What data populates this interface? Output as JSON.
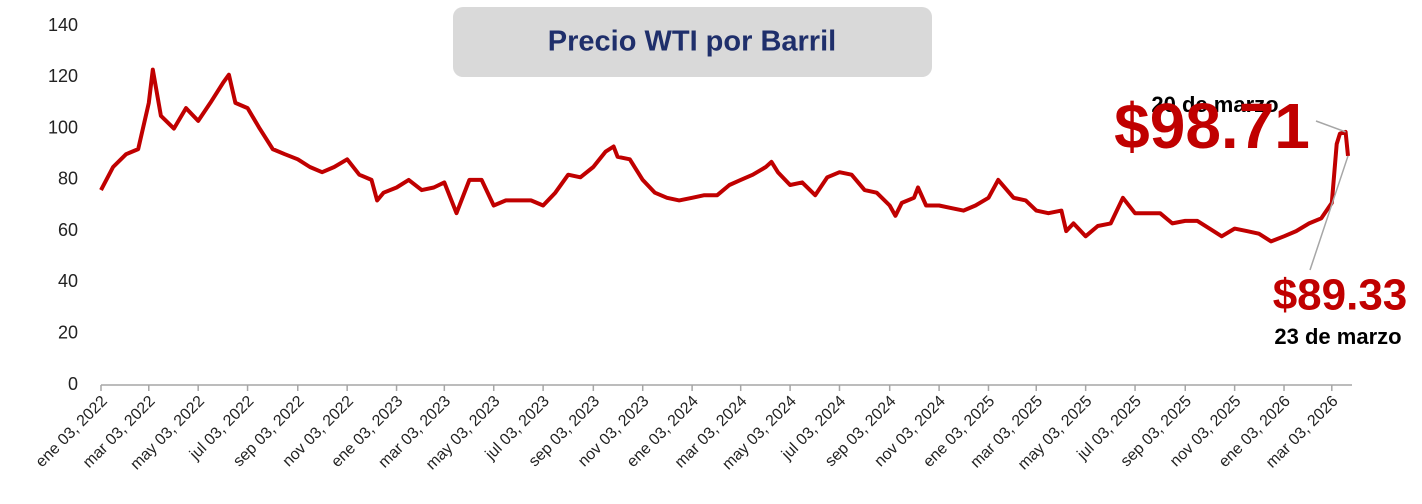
{
  "chart_data": {
    "type": "line",
    "title": "Precio WTI por Barril",
    "x": [
      "2022-01-03",
      "2022-01-18",
      "2022-02-03",
      "2022-02-18",
      "2022-03-03",
      "2022-03-08",
      "2022-03-18",
      "2022-04-03",
      "2022-04-18",
      "2022-05-03",
      "2022-05-18",
      "2022-06-03",
      "2022-06-10",
      "2022-06-18",
      "2022-07-03",
      "2022-07-18",
      "2022-08-03",
      "2022-08-18",
      "2022-09-03",
      "2022-09-18",
      "2022-10-03",
      "2022-10-18",
      "2022-11-03",
      "2022-11-18",
      "2022-12-03",
      "2022-12-10",
      "2022-12-18",
      "2023-01-03",
      "2023-01-18",
      "2023-02-03",
      "2023-02-18",
      "2023-03-03",
      "2023-03-18",
      "2023-04-03",
      "2023-04-18",
      "2023-05-03",
      "2023-05-18",
      "2023-06-03",
      "2023-06-18",
      "2023-07-03",
      "2023-07-18",
      "2023-08-03",
      "2023-08-18",
      "2023-09-03",
      "2023-09-18",
      "2023-09-28",
      "2023-10-03",
      "2023-10-18",
      "2023-11-03",
      "2023-11-18",
      "2023-12-03",
      "2023-12-18",
      "2024-01-03",
      "2024-01-18",
      "2024-02-03",
      "2024-02-18",
      "2024-03-03",
      "2024-03-18",
      "2024-04-03",
      "2024-04-10",
      "2024-04-18",
      "2024-05-03",
      "2024-05-18",
      "2024-06-03",
      "2024-06-18",
      "2024-07-03",
      "2024-07-18",
      "2024-08-03",
      "2024-08-18",
      "2024-09-03",
      "2024-09-10",
      "2024-09-18",
      "2024-10-03",
      "2024-10-08",
      "2024-10-18",
      "2024-11-03",
      "2024-11-18",
      "2024-12-03",
      "2024-12-18",
      "2025-01-03",
      "2025-01-15",
      "2025-02-03",
      "2025-02-18",
      "2025-03-03",
      "2025-03-18",
      "2025-04-03",
      "2025-04-09",
      "2025-04-18",
      "2025-05-03",
      "2025-05-18",
      "2025-06-03",
      "2025-06-18",
      "2025-07-03",
      "2025-07-18",
      "2025-08-03",
      "2025-08-18",
      "2025-09-03",
      "2025-09-18",
      "2025-10-03",
      "2025-10-18",
      "2025-11-03",
      "2025-11-18",
      "2025-12-03",
      "2025-12-18",
      "2026-01-03",
      "2026-01-18",
      "2026-02-03",
      "2026-02-18",
      "2026-03-03",
      "2026-03-09",
      "2026-03-13",
      "2026-03-20",
      "2026-03-23"
    ],
    "series": [
      {
        "name": "WTI",
        "color": "#c00000",
        "values": [
          76,
          85,
          90,
          92,
          110,
          123,
          105,
          100,
          108,
          103,
          110,
          118,
          121,
          110,
          108,
          100,
          92,
          90,
          88,
          85,
          83,
          85,
          88,
          82,
          80,
          72,
          75,
          77,
          80,
          76,
          77,
          79,
          67,
          80,
          80,
          70,
          72,
          72,
          72,
          70,
          75,
          82,
          81,
          85,
          91,
          93,
          89,
          88,
          80,
          75,
          73,
          72,
          73,
          74,
          74,
          78,
          80,
          82,
          85,
          87,
          83,
          78,
          79,
          74,
          81,
          83,
          82,
          76,
          75,
          70,
          66,
          71,
          73,
          77,
          70,
          70,
          69,
          68,
          70,
          73,
          80,
          73,
          72,
          68,
          67,
          68,
          60,
          63,
          58,
          62,
          63,
          73,
          67,
          67,
          67,
          63,
          64,
          64,
          61,
          58,
          61,
          60,
          59,
          56,
          58,
          60,
          63,
          65,
          71,
          94,
          98,
          98.71,
          89.33
        ]
      }
    ],
    "xlim": [
      "2022-01-03",
      "2026-03-23"
    ],
    "xticks": [
      {
        "value": "2022-01-03",
        "label": "ene 03, 2022"
      },
      {
        "value": "2022-03-03",
        "label": "mar 03, 2022"
      },
      {
        "value": "2022-05-03",
        "label": "may 03, 2022"
      },
      {
        "value": "2022-07-03",
        "label": "jul 03, 2022"
      },
      {
        "value": "2022-09-03",
        "label": "sep 03, 2022"
      },
      {
        "value": "2022-11-03",
        "label": "nov 03, 2022"
      },
      {
        "value": "2023-01-03",
        "label": "ene 03, 2023"
      },
      {
        "value": "2023-03-03",
        "label": "mar 03, 2023"
      },
      {
        "value": "2023-05-03",
        "label": "may 03, 2023"
      },
      {
        "value": "2023-07-03",
        "label": "jul 03, 2023"
      },
      {
        "value": "2023-09-03",
        "label": "sep 03, 2023"
      },
      {
        "value": "2023-11-03",
        "label": "nov 03, 2023"
      },
      {
        "value": "2024-01-03",
        "label": "ene 03, 2024"
      },
      {
        "value": "2024-03-03",
        "label": "mar 03, 2024"
      },
      {
        "value": "2024-05-03",
        "label": "may 03, 2024"
      },
      {
        "value": "2024-07-03",
        "label": "jul 03, 2024"
      },
      {
        "value": "2024-09-03",
        "label": "sep 03, 2024"
      },
      {
        "value": "2024-11-03",
        "label": "nov 03, 2024"
      },
      {
        "value": "2025-01-03",
        "label": "ene 03, 2025"
      },
      {
        "value": "2025-03-03",
        "label": "mar 03, 2025"
      },
      {
        "value": "2025-05-03",
        "label": "may 03, 2025"
      },
      {
        "value": "2025-07-03",
        "label": "jul 03, 2025"
      },
      {
        "value": "2025-09-03",
        "label": "sep 03, 2025"
      },
      {
        "value": "2025-11-03",
        "label": "nov 03, 2025"
      },
      {
        "value": "2026-01-03",
        "label": "ene 03, 2026"
      },
      {
        "value": "2026-03-03",
        "label": "mar 03, 2026"
      }
    ],
    "ylim": [
      0,
      140
    ],
    "yticks": [
      0,
      20,
      40,
      60,
      80,
      100,
      120,
      140
    ],
    "grid": false,
    "annotations": [
      {
        "label": "20 de marzo",
        "x": "2026-03-20",
        "value": 98.71,
        "value_label": "$98.71"
      },
      {
        "label": "23 de marzo",
        "x": "2026-03-23",
        "value": 89.33,
        "value_label": "$89.33"
      }
    ]
  }
}
